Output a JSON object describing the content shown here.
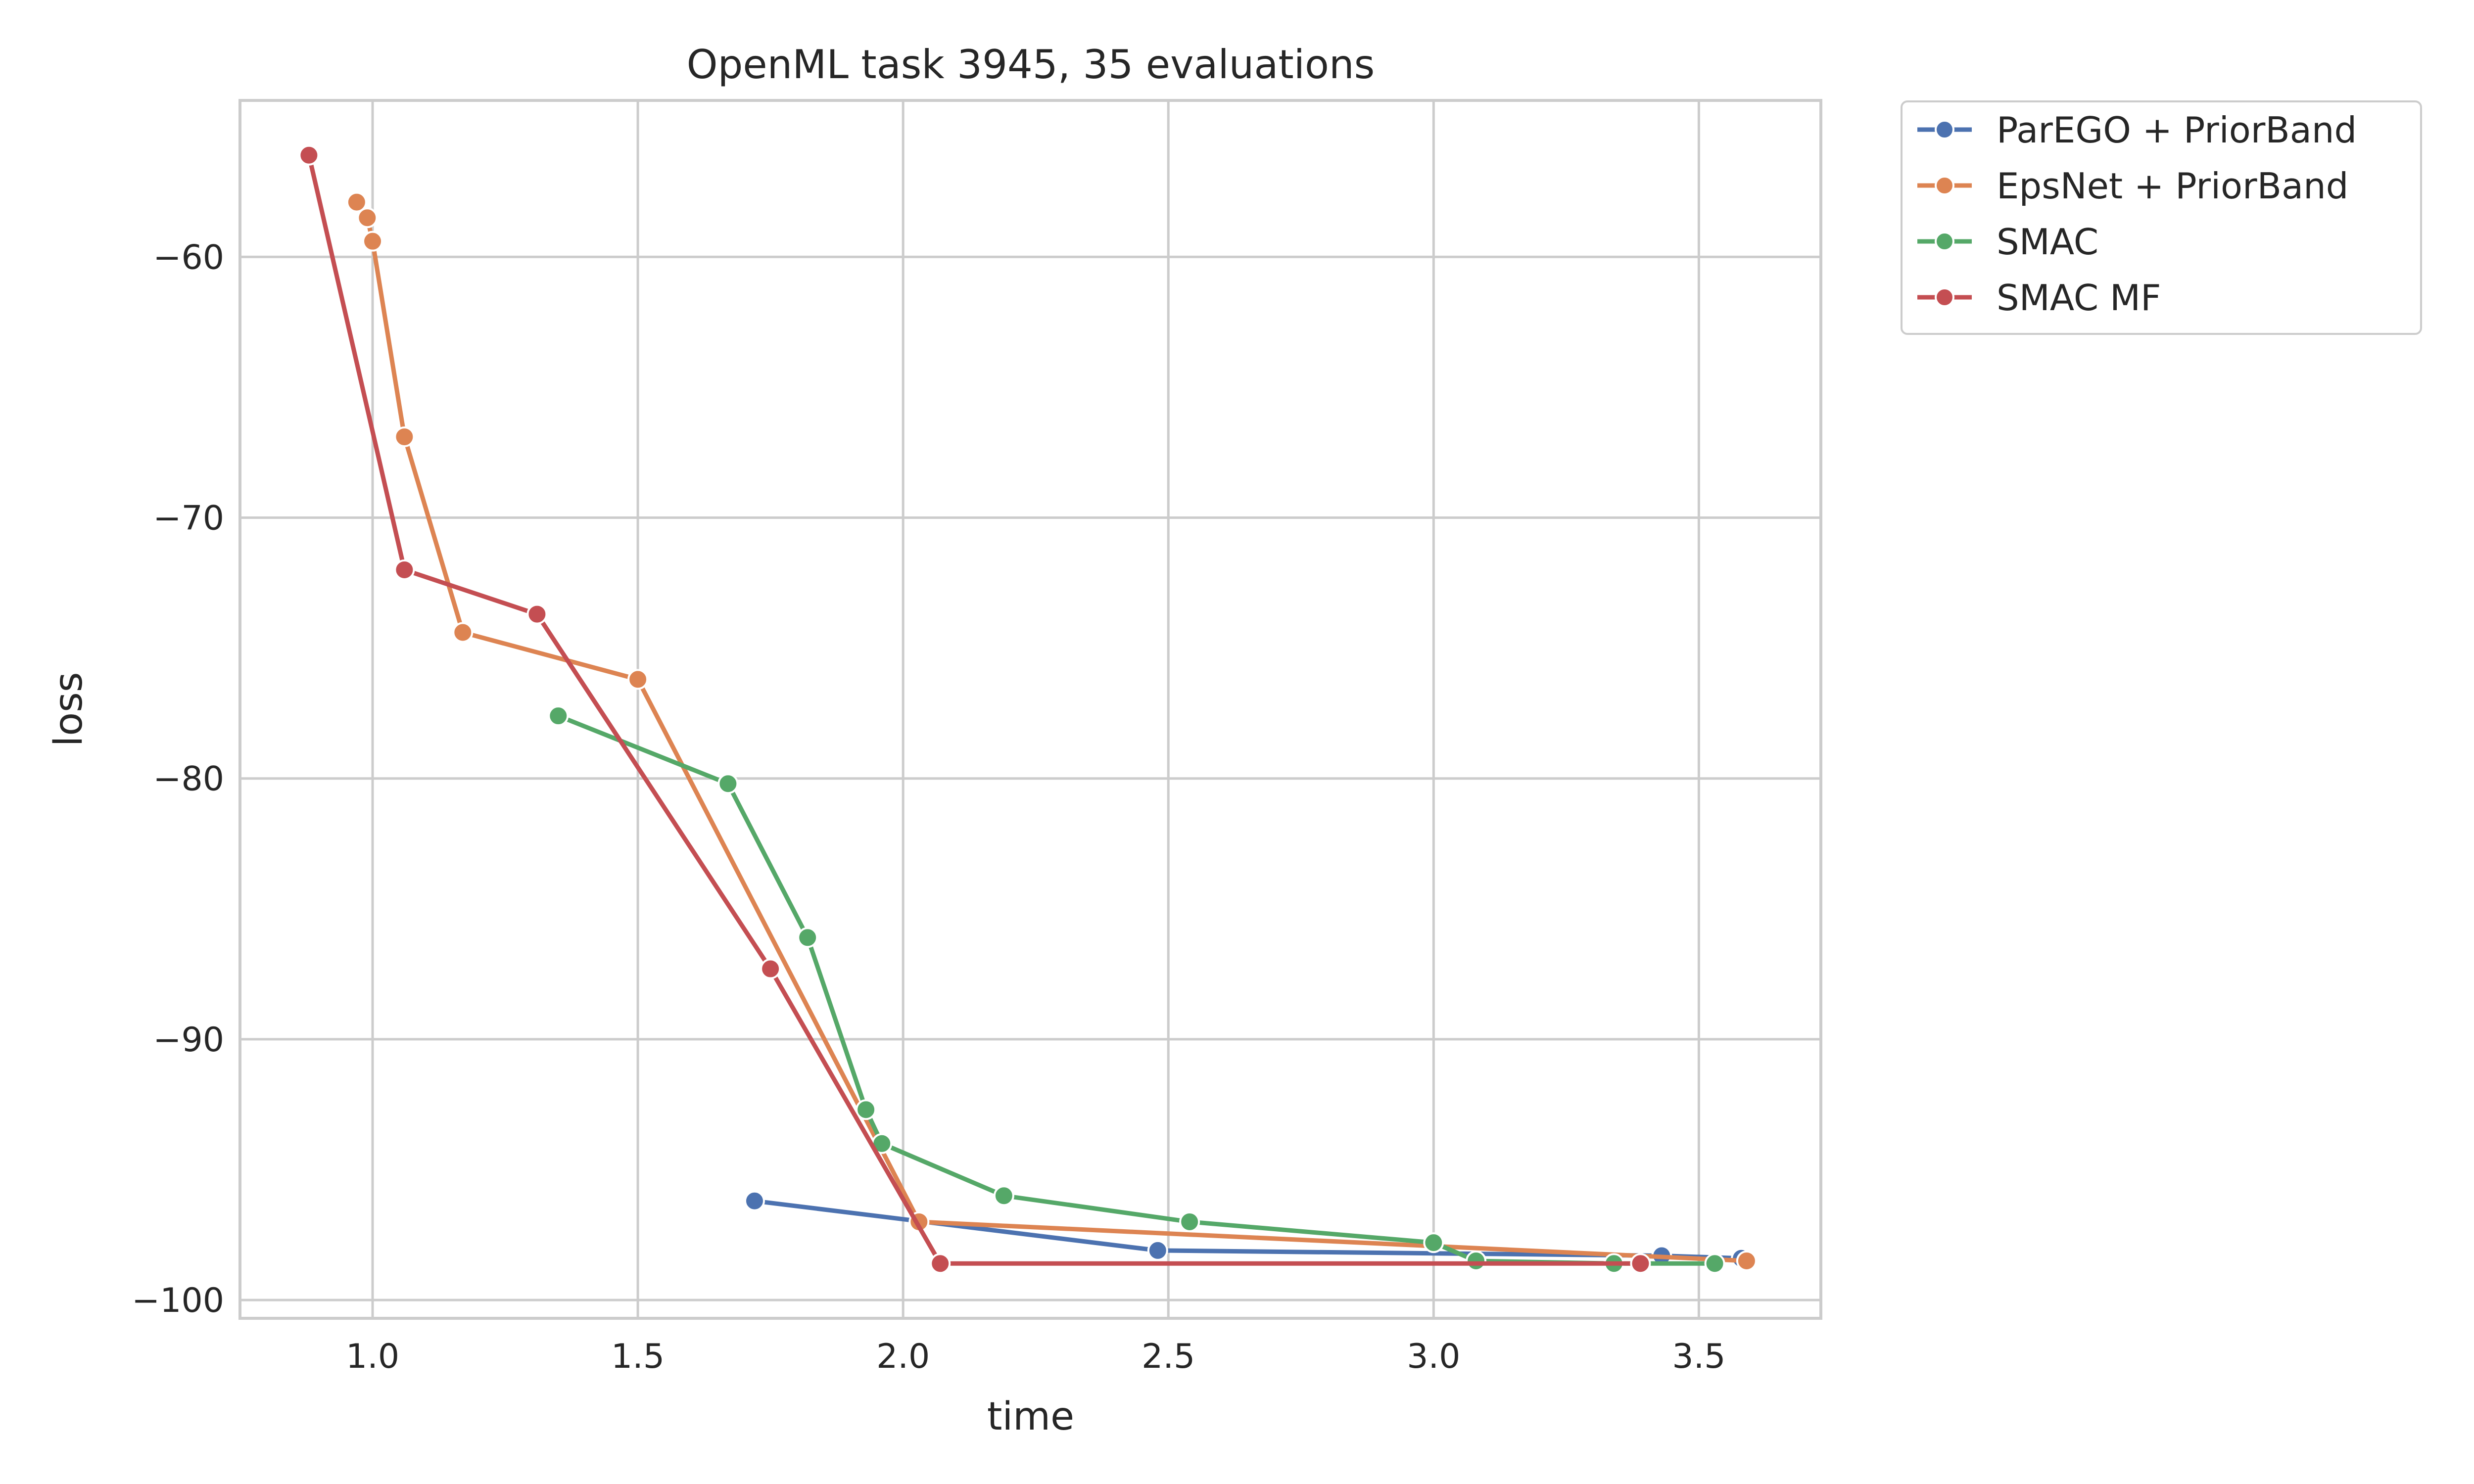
{
  "chart_data": {
    "type": "line",
    "title": "OpenML task 3945, 35 evaluations",
    "xlabel": "time",
    "ylabel": "loss",
    "xlim": [
      0.75,
      3.73
    ],
    "ylim": [
      -100.7,
      -54
    ],
    "xticks": [
      1.0,
      1.5,
      2.0,
      2.5,
      3.0,
      3.5
    ],
    "xtick_labels": [
      "1.0",
      "1.5",
      "2.0",
      "2.5",
      "3.0",
      "3.5"
    ],
    "yticks": [
      -60,
      -70,
      -80,
      -90,
      -100
    ],
    "ytick_labels": [
      "−60",
      "−70",
      "−80",
      "−90",
      "−100"
    ],
    "grid": true,
    "legend_position": "outside top-right",
    "series": [
      {
        "name": "ParEGO + PriorBand",
        "color": "#4c72b0",
        "x": [
          1.72,
          2.48,
          3.43,
          3.58
        ],
        "y": [
          -96.2,
          -98.1,
          -98.3,
          -98.4
        ]
      },
      {
        "name": "EpsNet + PriorBand",
        "color": "#dd8452",
        "x": [
          0.97,
          0.99,
          1.0,
          1.06,
          1.17,
          1.5,
          2.03,
          3.59
        ],
        "y": [
          -57.9,
          -58.5,
          -59.4,
          -66.9,
          -74.4,
          -76.2,
          -97.0,
          -98.5
        ]
      },
      {
        "name": "SMAC",
        "color": "#55a868",
        "x": [
          1.35,
          1.67,
          1.82,
          1.93,
          1.96,
          2.19,
          2.54,
          3.0,
          3.08,
          3.34,
          3.53
        ],
        "y": [
          -77.6,
          -80.2,
          -86.1,
          -92.7,
          -94.0,
          -96.0,
          -97.0,
          -97.8,
          -98.5,
          -98.6,
          -98.6
        ]
      },
      {
        "name": "SMAC MF",
        "color": "#c44e52",
        "x": [
          0.88,
          1.06,
          1.31,
          1.75,
          2.07,
          3.39
        ],
        "y": [
          -56.1,
          -72.0,
          -73.7,
          -87.3,
          -98.6,
          -98.6
        ]
      }
    ]
  }
}
